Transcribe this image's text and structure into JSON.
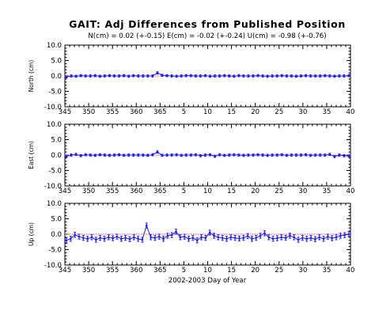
{
  "header": {
    "title": "GAIT: Adj Differences from Published Position",
    "stats": "N(cm) = 0.02 (+-0.15)  E(cm) = -0.02 (+-0.24)  U(cm) = -0.98 (+-0.76)"
  },
  "colors": {
    "data": "#1a1aff",
    "reference": "#ff3030",
    "axis": "#000000"
  },
  "chart_data": [
    {
      "type": "scatter",
      "panel": "north",
      "ylabel": "North (cm)",
      "ylim": [
        -10,
        10
      ],
      "yticks": [
        "10.0",
        "5.0",
        "0.0",
        "-5.0",
        "-10.0"
      ],
      "xticks": [
        "345",
        "350",
        "355",
        "360",
        "365",
        "5",
        "10",
        "15",
        "20",
        "25",
        "30",
        "35",
        "40"
      ],
      "xlim": [
        345,
        406
      ],
      "reference_line": 0,
      "series": [
        {
          "values": [
            -0.3,
            0.0,
            -0.1,
            0.1,
            0.0,
            0.0,
            0.1,
            -0.1,
            0.0,
            0.1,
            0.0,
            0.0,
            0.1,
            -0.1,
            0.1,
            0.0,
            0.0,
            0.0,
            0.0,
            1.0,
            0.2,
            0.1,
            0.0,
            -0.1,
            0.0,
            0.1,
            0.1,
            0.0,
            0.0,
            0.1,
            -0.1,
            0.0,
            0.0,
            0.1,
            0.0,
            -0.1,
            0.1,
            0.0,
            0.0,
            0.0,
            0.1,
            0.0,
            -0.1,
            0.0,
            0.0,
            0.1,
            0.0,
            0.0,
            -0.1,
            0.0,
            0.1,
            0.0,
            0.0,
            0.0,
            0.1,
            0.0,
            -0.1,
            0.0,
            0.0,
            0.1
          ]
        }
      ]
    },
    {
      "type": "scatter",
      "panel": "east",
      "ylabel": "East (cm)",
      "ylim": [
        -10,
        10
      ],
      "yticks": [
        "10.0",
        "5.0",
        "0.0",
        "-5.0",
        "-10.0"
      ],
      "xticks": [
        "345",
        "350",
        "355",
        "360",
        "365",
        "5",
        "10",
        "15",
        "20",
        "25",
        "30",
        "35",
        "40"
      ],
      "xlim": [
        345,
        406
      ],
      "reference_line": 0,
      "series": [
        {
          "values": [
            -0.4,
            0.0,
            0.2,
            -0.2,
            0.1,
            0.0,
            -0.1,
            0.1,
            0.0,
            -0.1,
            0.0,
            0.1,
            -0.1,
            0.0,
            0.0,
            0.0,
            0.0,
            -0.1,
            0.1,
            1.0,
            -0.1,
            0.0,
            0.0,
            0.1,
            -0.1,
            0.0,
            0.0,
            0.1,
            -0.2,
            0.0,
            0.1,
            -0.4,
            0.1,
            -0.1,
            0.0,
            0.1,
            0.0,
            -0.1,
            0.0,
            0.0,
            0.1,
            0.0,
            -0.1,
            0.0,
            0.0,
            0.1,
            -0.1,
            0.0,
            0.0,
            0.0,
            0.1,
            -0.1,
            0.0,
            0.0,
            0.0,
            0.2,
            -0.5,
            0.0,
            -0.2,
            -0.3
          ]
        }
      ]
    },
    {
      "type": "scatter",
      "panel": "up",
      "ylabel": "Up (cm)",
      "xlabel": "2002-2003 Day of Year",
      "ylim": [
        -10,
        10
      ],
      "yticks": [
        "10.0",
        "5.0",
        "0.0",
        "-5.0",
        "-10.0"
      ],
      "xticks": [
        "345",
        "350",
        "355",
        "360",
        "365",
        "5",
        "10",
        "15",
        "20",
        "25",
        "30",
        "35",
        "40"
      ],
      "xlim": [
        345,
        406
      ],
      "reference_line": 0,
      "series": [
        {
          "values": [
            -2.0,
            -1.5,
            -0.2,
            -0.8,
            -1.2,
            -1.5,
            -1.0,
            -1.8,
            -1.2,
            -1.5,
            -1.0,
            -1.3,
            -0.8,
            -1.5,
            -1.2,
            -1.6,
            -1.0,
            -1.5,
            -1.8,
            2.8,
            -1.0,
            -1.2,
            -0.8,
            -1.5,
            -0.5,
            -0.3,
            0.8,
            -1.0,
            -0.8,
            -1.5,
            -1.2,
            -2.0,
            -1.0,
            -1.2,
            0.5,
            -0.5,
            -1.0,
            -1.2,
            -1.5,
            -1.0,
            -1.2,
            -1.4,
            -1.2,
            -0.6,
            -1.5,
            -1.2,
            -0.5,
            0.3,
            -1.0,
            -1.5,
            -1.3,
            -1.0,
            -1.2,
            -0.5,
            -1.0,
            -1.8,
            -1.2,
            -1.5,
            -1.2,
            -1.6,
            -1.0,
            -1.5,
            -0.8,
            -1.3,
            -1.0,
            -0.5,
            -0.3,
            0.0
          ]
        }
      ]
    }
  ]
}
